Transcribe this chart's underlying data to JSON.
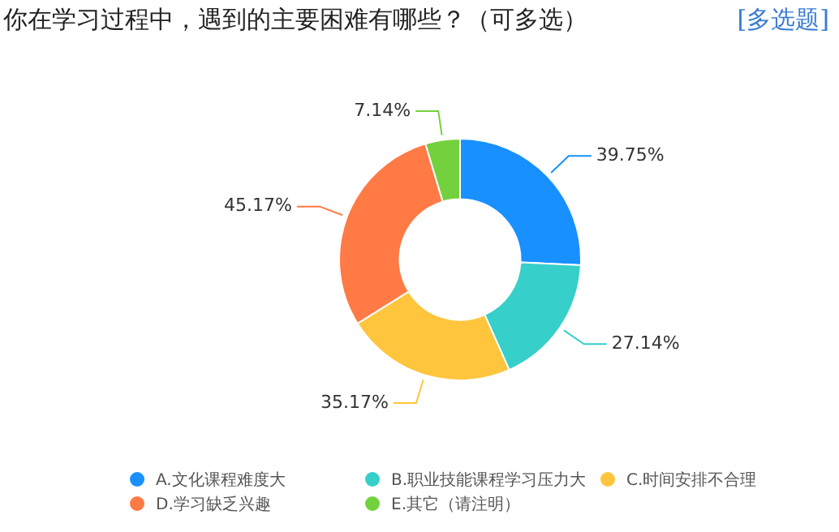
{
  "chart_data": {
    "type": "donut",
    "title": "你在学习过程中，遇到的主要困难有哪些？（可多选）",
    "subtitle": "[多选题]",
    "categories": [
      "A.文化课程难度大",
      "B.职业技能课程学习压力大",
      "C.时间安排不合理",
      "D.学习缺乏兴趣",
      "E.其它（请注明）"
    ],
    "values": [
      39.75,
      27.14,
      35.17,
      45.17,
      7.14
    ],
    "colors": [
      "#1890ff",
      "#36cfc9",
      "#ffc53d",
      "#ff7a45",
      "#73d13d"
    ],
    "value_labels": [
      "39.75%",
      "27.14%",
      "35.17%",
      "45.17%",
      "7.14%"
    ],
    "legend": "bottom"
  }
}
